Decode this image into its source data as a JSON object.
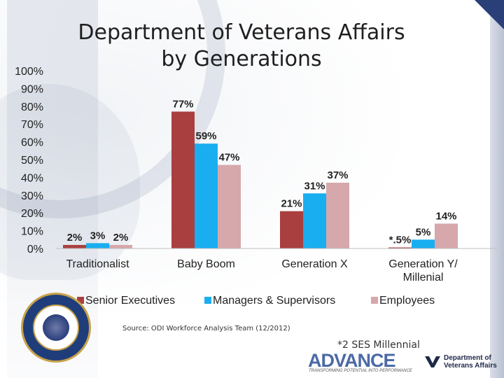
{
  "slide": {
    "title_line1": "Department of Veterans Affairs",
    "title_line2": "by Generations",
    "source": "Source:  ODI Workforce Analysis Team (12/2012)",
    "footnote": "*2 SES Millennial"
  },
  "logos": {
    "advance_wordmark": "ADVANCE",
    "advance_tagline": "TRANSFORMING POTENTIAL INTO PERFORMANCE",
    "va_line1": "Department of",
    "va_line2": "Veterans Affairs"
  },
  "chart_data": {
    "type": "bar",
    "title": "Department of Veterans Affairs by Generations",
    "categories": [
      "Traditionalist",
      "Baby Boom",
      "Generation X",
      "Generation Y/ Millenial"
    ],
    "category_lines": [
      [
        "Traditionalist"
      ],
      [
        "Baby Boom"
      ],
      [
        "Generation X"
      ],
      [
        "Generation Y/",
        "Millenial"
      ]
    ],
    "series": [
      {
        "name": "Senior Executives",
        "values": [
          2,
          77,
          21,
          0.5
        ],
        "labels": [
          "2%",
          "77%",
          "21%",
          "*.5%"
        ],
        "color": "#a93f3f"
      },
      {
        "name": "Managers & Supervisors",
        "values": [
          3,
          59,
          31,
          5
        ],
        "labels": [
          "3%",
          "59%",
          "31%",
          "5%"
        ],
        "color": "#19aef0"
      },
      {
        "name": "Employees",
        "values": [
          2,
          47,
          37,
          14
        ],
        "labels": [
          "2%",
          "47%",
          "37%",
          "14%"
        ],
        "color": "#d6a8ab"
      }
    ],
    "ylim": [
      0,
      100
    ],
    "yticks": [
      "0%",
      "10%",
      "20%",
      "30%",
      "40%",
      "50%",
      "60%",
      "70%",
      "80%",
      "90%",
      "100%"
    ],
    "xlabel": "",
    "ylabel": "",
    "grid": false,
    "legend_position": "bottom"
  }
}
